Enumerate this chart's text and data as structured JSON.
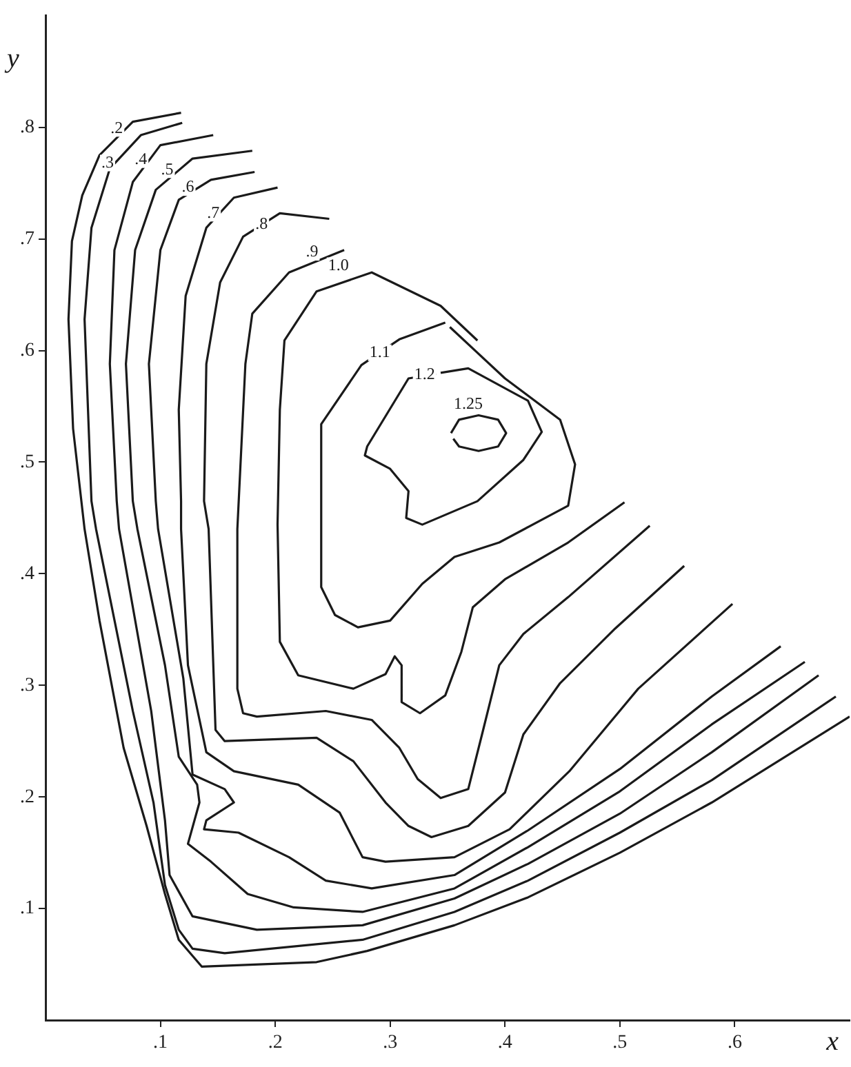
{
  "chart_data": {
    "type": "line",
    "xlabel": "x",
    "ylabel": "y",
    "xlim": [
      0,
      0.7
    ],
    "ylim": [
      0,
      0.9
    ],
    "xticks": [
      {
        "value": 0.1,
        "label": ".1"
      },
      {
        "value": 0.2,
        "label": ".2"
      },
      {
        "value": 0.3,
        "label": ".3"
      },
      {
        "value": 0.4,
        "label": ".4"
      },
      {
        "value": 0.5,
        "label": ".5"
      },
      {
        "value": 0.6,
        "label": ".6"
      }
    ],
    "annotations": [
      {
        "text": ".2",
        "x": 0.062,
        "y": 0.799
      },
      {
        "text": ".3",
        "x": 0.054,
        "y": 0.768
      },
      {
        "text": ".4",
        "x": 0.083,
        "y": 0.771
      },
      {
        "text": ".5",
        "x": 0.106,
        "y": 0.762
      },
      {
        "text": ".6",
        "x": 0.124,
        "y": 0.746
      },
      {
        "text": ".7",
        "x": 0.146,
        "y": 0.723
      },
      {
        "text": ".8",
        "x": 0.188,
        "y": 0.713
      },
      {
        "text": ".9",
        "x": 0.232,
        "y": 0.688
      },
      {
        "text": "1.0",
        "x": 0.255,
        "y": 0.676
      },
      {
        "text": "1.1",
        "x": 0.291,
        "y": 0.598
      },
      {
        "text": "1.2",
        "x": 0.33,
        "y": 0.578
      },
      {
        "text": "1.25",
        "x": 0.368,
        "y": 0.552
      }
    ],
    "yticks": [
      {
        "value": 0.1,
        "label": ".1"
      },
      {
        "value": 0.2,
        "label": ".2"
      },
      {
        "value": 0.3,
        "label": ".3"
      },
      {
        "value": 0.4,
        "label": ".4"
      },
      {
        "value": 0.5,
        "label": ".5"
      },
      {
        "value": 0.6,
        "label": ".6"
      },
      {
        "value": 0.7,
        "label": ".7"
      },
      {
        "value": 0.8,
        "label": ".8"
      }
    ],
    "grid": false,
    "legend": false,
    "marker": "none",
    "line_style": "solid",
    "series": [
      {
        "color": "#1a1a1a",
        "x": [
          0.118,
          0.076,
          0.047,
          0.032,
          0.023,
          0.02,
          0.024,
          0.034,
          0.047,
          0.068,
          0.088,
          0.104,
          0.116,
          0.136,
          0.236,
          0.28,
          0.356,
          0.42,
          0.5,
          0.58,
          0.7
        ],
        "values": [
          0.813,
          0.805,
          0.775,
          0.739,
          0.698,
          0.628,
          0.53,
          0.44,
          0.358,
          0.244,
          0.174,
          0.113,
          0.072,
          0.048,
          0.052,
          0.062,
          0.085,
          0.11,
          0.15,
          0.195,
          0.272
        ]
      },
      {
        "color": "#1a1a1a",
        "x": [
          0.119,
          0.083,
          0.056,
          0.04,
          0.034,
          0.04,
          0.044,
          0.076,
          0.094,
          0.104,
          0.116,
          0.128,
          0.156,
          0.276,
          0.356,
          0.42,
          0.5,
          0.58,
          0.688
        ],
        "values": [
          0.804,
          0.793,
          0.763,
          0.71,
          0.628,
          0.465,
          0.44,
          0.277,
          0.195,
          0.121,
          0.081,
          0.064,
          0.06,
          0.072,
          0.097,
          0.125,
          0.168,
          0.215,
          0.29
        ]
      },
      {
        "color": "#1a1a1a",
        "x": [
          0.146,
          0.1,
          0.076,
          0.06,
          0.056,
          0.062,
          0.064,
          0.092,
          0.104,
          0.108,
          0.128,
          0.184,
          0.276,
          0.356,
          0.42,
          0.5,
          0.58,
          0.673
        ],
        "values": [
          0.793,
          0.784,
          0.751,
          0.69,
          0.588,
          0.465,
          0.44,
          0.277,
          0.179,
          0.13,
          0.093,
          0.081,
          0.085,
          0.109,
          0.14,
          0.185,
          0.24,
          0.309
        ]
      },
      {
        "color": "#1a1a1a",
        "x": [
          0.18,
          0.128,
          0.096,
          0.078,
          0.07,
          0.076,
          0.08,
          0.104,
          0.116,
          0.132,
          0.134,
          0.124,
          0.144,
          0.176,
          0.216,
          0.276,
          0.356,
          0.42,
          0.5,
          0.58,
          0.661
        ],
        "values": [
          0.779,
          0.772,
          0.744,
          0.69,
          0.588,
          0.465,
          0.44,
          0.318,
          0.236,
          0.211,
          0.195,
          0.158,
          0.142,
          0.113,
          0.101,
          0.097,
          0.118,
          0.155,
          0.205,
          0.265,
          0.321
        ]
      },
      {
        "color": "#1a1a1a",
        "x": [
          0.182,
          0.144,
          0.116,
          0.1,
          0.09,
          0.096,
          0.098,
          0.12,
          0.128,
          0.156,
          0.164,
          0.14,
          0.138,
          0.168,
          0.212,
          0.244,
          0.284,
          0.356,
          0.42,
          0.5,
          0.58,
          0.64
        ],
        "values": [
          0.76,
          0.753,
          0.735,
          0.69,
          0.588,
          0.465,
          0.44,
          0.306,
          0.22,
          0.207,
          0.195,
          0.179,
          0.171,
          0.168,
          0.146,
          0.125,
          0.118,
          0.13,
          0.17,
          0.225,
          0.29,
          0.335
        ]
      },
      {
        "color": "#1a1a1a",
        "x": [
          0.202,
          0.164,
          0.14,
          0.122,
          0.116,
          0.118,
          0.118,
          0.124,
          0.14,
          0.164,
          0.22,
          0.256,
          0.276,
          0.296,
          0.356,
          0.404,
          0.456,
          0.516,
          0.598
        ],
        "values": [
          0.746,
          0.737,
          0.71,
          0.649,
          0.547,
          0.465,
          0.44,
          0.318,
          0.24,
          0.223,
          0.211,
          0.186,
          0.146,
          0.142,
          0.146,
          0.171,
          0.223,
          0.297,
          0.373
        ]
      },
      {
        "color": "#1a1a1a",
        "x": [
          0.247,
          0.204,
          0.172,
          0.152,
          0.14,
          0.138,
          0.142,
          0.148,
          0.156,
          0.236,
          0.268,
          0.296,
          0.316,
          0.336,
          0.368,
          0.4,
          0.416,
          0.448,
          0.496,
          0.556
        ],
        "values": [
          0.718,
          0.723,
          0.702,
          0.661,
          0.588,
          0.465,
          0.44,
          0.26,
          0.25,
          0.253,
          0.232,
          0.195,
          0.174,
          0.164,
          0.174,
          0.204,
          0.256,
          0.302,
          0.351,
          0.407
        ]
      },
      {
        "color": "#1a1a1a",
        "x": [
          0.26,
          0.212,
          0.18,
          0.174,
          0.167,
          0.167,
          0.172,
          0.184,
          0.244,
          0.284,
          0.308,
          0.324,
          0.344,
          0.368,
          0.38,
          0.395,
          0.416,
          0.455,
          0.526
        ],
        "values": [
          0.69,
          0.67,
          0.633,
          0.588,
          0.44,
          0.297,
          0.275,
          0.272,
          0.277,
          0.269,
          0.244,
          0.216,
          0.199,
          0.207,
          0.256,
          0.318,
          0.346,
          0.379,
          0.443
        ]
      },
      {
        "color": "#1a1a1a",
        "x": [
          0.376,
          0.344,
          0.284,
          0.236,
          0.208,
          0.204,
          0.202,
          0.204,
          0.22,
          0.268,
          0.296,
          0.304,
          0.31,
          0.31,
          0.326,
          0.348,
          0.362,
          0.372,
          0.4,
          0.455,
          0.504
        ],
        "values": [
          0.609,
          0.64,
          0.67,
          0.653,
          0.609,
          0.547,
          0.444,
          0.339,
          0.309,
          0.297,
          0.31,
          0.326,
          0.318,
          0.285,
          0.275,
          0.291,
          0.33,
          0.37,
          0.395,
          0.428,
          0.464
        ]
      },
      {
        "color": "#1a1a1a",
        "x": [
          0.348,
          0.308,
          0.275,
          0.24,
          0.24,
          0.252,
          0.272,
          0.3,
          0.328,
          0.356,
          0.395,
          0.455,
          0.461,
          0.448,
          0.4,
          0.352
        ],
        "values": [
          0.625,
          0.61,
          0.587,
          0.534,
          0.388,
          0.363,
          0.352,
          0.358,
          0.391,
          0.415,
          0.428,
          0.461,
          0.498,
          0.538,
          0.575,
          0.621
        ]
      },
      {
        "color": "#1a1a1a",
        "x": [
          0.34,
          0.316,
          0.28,
          0.278,
          0.3,
          0.316,
          0.314,
          0.328,
          0.376,
          0.416,
          0.432,
          0.42,
          0.368,
          0.344
        ],
        "values": [
          0.579,
          0.575,
          0.514,
          0.506,
          0.494,
          0.474,
          0.45,
          0.444,
          0.465,
          0.502,
          0.527,
          0.555,
          0.584,
          0.58
        ]
      },
      {
        "color": "#1a1a1a",
        "x": [
          0.353,
          0.36,
          0.377,
          0.394,
          0.401,
          0.394,
          0.377,
          0.36,
          0.355
        ],
        "values": [
          0.526,
          0.538,
          0.542,
          0.538,
          0.526,
          0.514,
          0.51,
          0.514,
          0.521
        ]
      }
    ]
  }
}
